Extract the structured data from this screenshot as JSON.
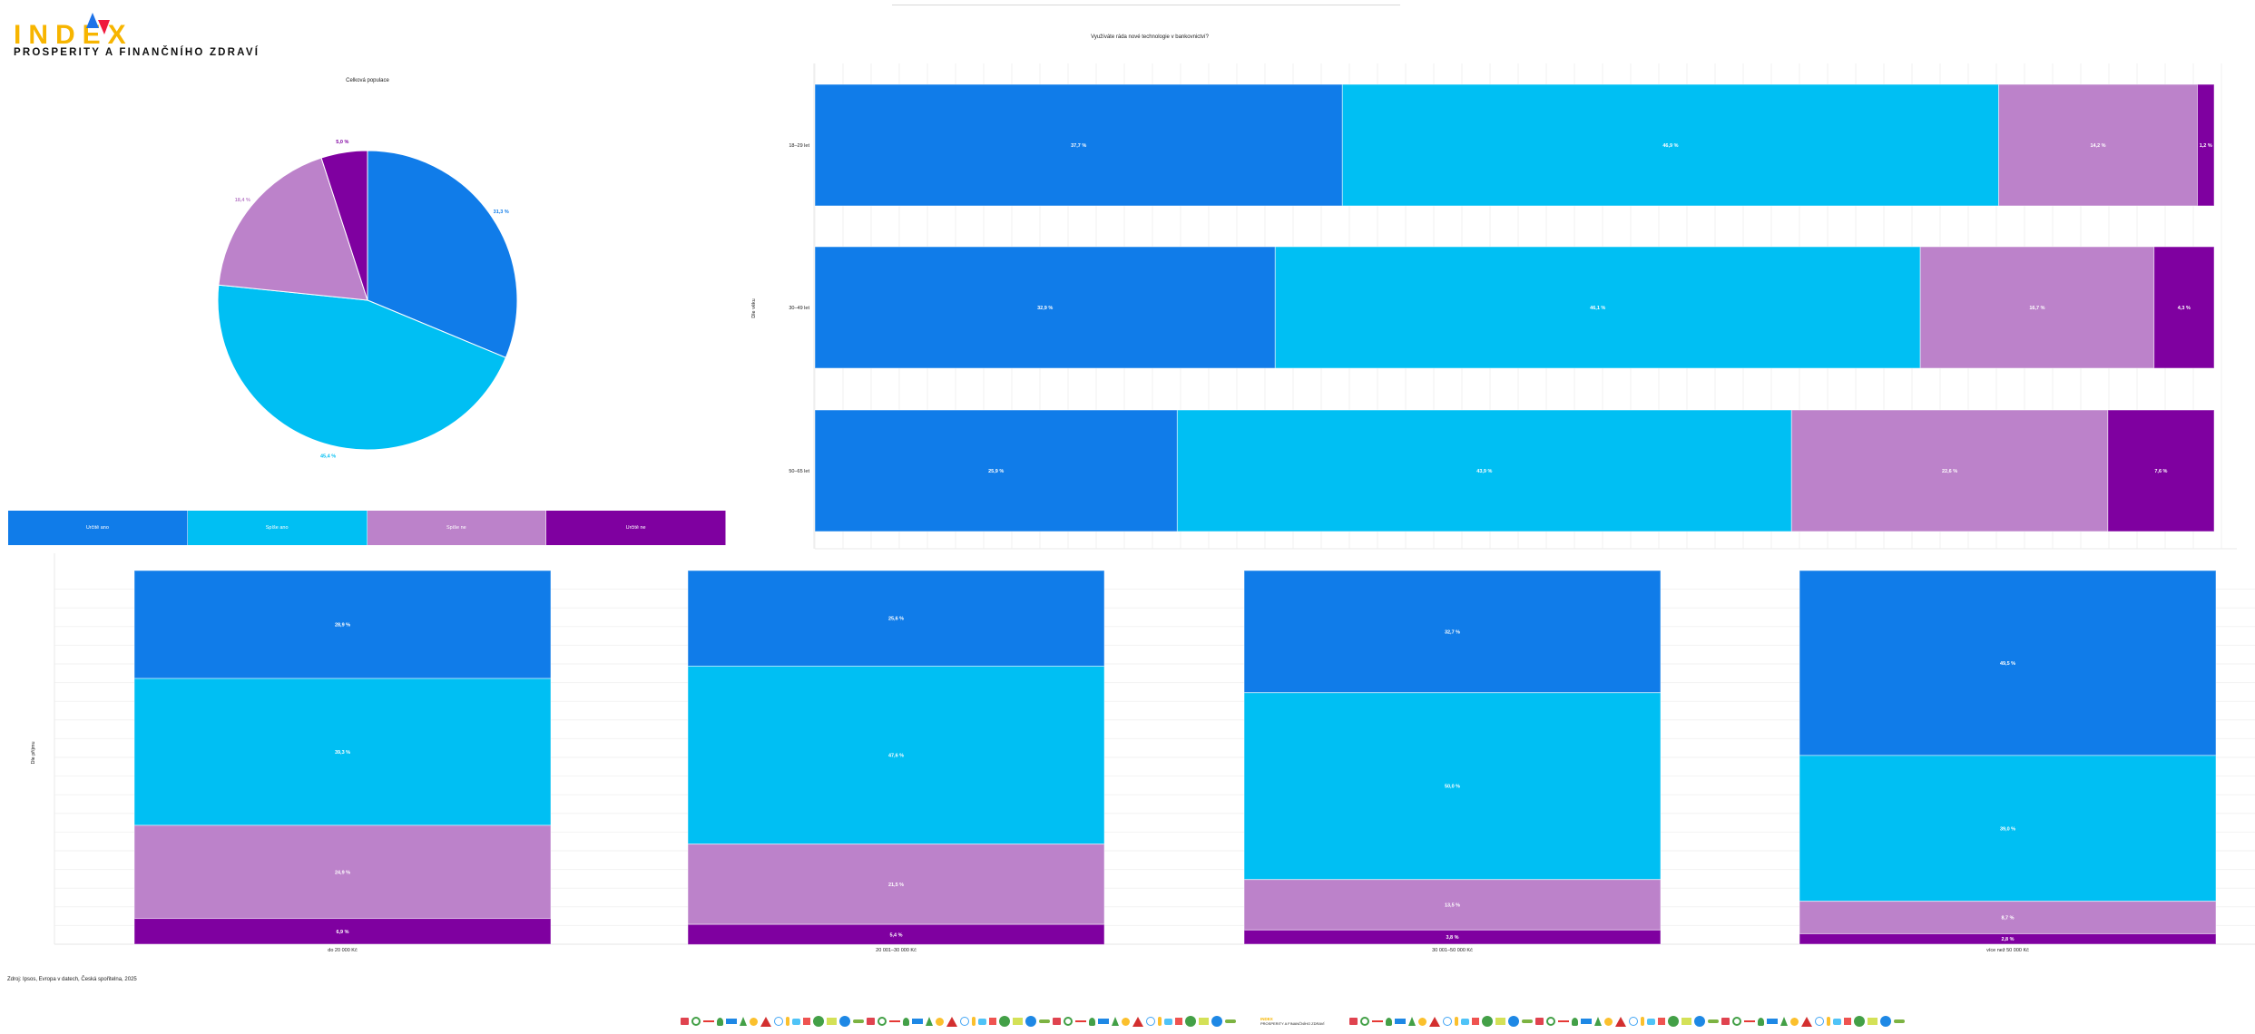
{
  "logo": {
    "word": "INDEX",
    "subtitle": "PROSPERITY A FINANČNÍHO ZDRAVÍ"
  },
  "colors": {
    "urcite_ano": "#107CE9",
    "spise_ano": "#00BFF3",
    "spise_ne": "#BC82CA",
    "urcite_ne": "#7F00A0",
    "logo_yellow": "#F7B500",
    "logo_blue": "#1E73E8",
    "logo_red": "#F0193C"
  },
  "legend": [
    "Určitě ano",
    "Spíše ano",
    "Spíše ne",
    "Určitě ne"
  ],
  "source": "Zdroj: Ipsos, Evropa v datech, Česká spořitelna, 2025",
  "footer": {
    "strip_icons": [
      "bench-icon",
      "ring-icon",
      "rail-icon",
      "tree-icon",
      "flag-icon",
      "pine-icon",
      "sun-icon",
      "mountain-icon",
      "ferris-wheel-icon",
      "bottle-icon",
      "fountain-icon",
      "box-icon",
      "bush-icon",
      "factory-icon",
      "globe-icon",
      "car-icon"
    ]
  },
  "chart_data": [
    {
      "type": "pie",
      "title": "Celková populace",
      "categories": [
        "Určitě ano",
        "Spíše ano",
        "Spíše ne",
        "Určitě ne"
      ],
      "values": [
        31.3,
        45.4,
        18.4,
        5.0
      ],
      "labels": [
        "31,3 %",
        "45,4 %",
        "18,4 %",
        "5,0 %"
      ],
      "legend": "bottom"
    },
    {
      "type": "bar",
      "orientation": "horizontal",
      "stacked": true,
      "title": "Využíváte ráda nové technologie v bankovnictví?",
      "ylabel": "Dle věku",
      "categories": [
        "18–29 let",
        "30–49 let",
        "50–65 let"
      ],
      "series": [
        {
          "name": "Určitě ano",
          "values": [
            37.7,
            32.9,
            25.9
          ],
          "labels": [
            "37,7 %",
            "32,9 %",
            "25,9 %"
          ]
        },
        {
          "name": "Spíše ano",
          "values": [
            46.9,
            46.1,
            43.9
          ],
          "labels": [
            "46,9 %",
            "46,1 %",
            "43,9 %"
          ]
        },
        {
          "name": "Spíše ne",
          "values": [
            14.2,
            16.7,
            22.6
          ],
          "labels": [
            "14,2 %",
            "16,7 %",
            "22,6 %"
          ]
        },
        {
          "name": "Určitě ne",
          "values": [
            1.2,
            4.3,
            7.6
          ],
          "labels": [
            "1,2 %",
            "4,3 %",
            "7,6 %"
          ]
        }
      ],
      "xlim": [
        0,
        100
      ],
      "grid": true
    },
    {
      "type": "bar",
      "orientation": "vertical",
      "stacked": true,
      "ylabel": "Dle příjmu",
      "categories": [
        "do 20 000 Kč",
        "20 001–30 000 Kč",
        "30 001–50 000 Kč",
        "více než 50 000 Kč"
      ],
      "series": [
        {
          "name": "Určitě ano",
          "values": [
            28.9,
            25.6,
            32.7,
            49.5
          ],
          "labels": [
            "28,9 %",
            "25,6 %",
            "32,7 %",
            "49,5 %"
          ]
        },
        {
          "name": "Spíše ano",
          "values": [
            39.3,
            47.6,
            50.0,
            39.0
          ],
          "labels": [
            "39,3 %",
            "47,6 %",
            "50,0 %",
            "39,0 %"
          ]
        },
        {
          "name": "Spíše ne",
          "values": [
            24.9,
            21.5,
            13.5,
            8.7
          ],
          "labels": [
            "24,9 %",
            "21,5 %",
            "13,5 %",
            "8,7 %"
          ]
        },
        {
          "name": "Určitě ne",
          "values": [
            6.9,
            5.4,
            3.8,
            2.8
          ],
          "labels": [
            "6,9 %",
            "5,4 %",
            "3,8 %",
            "2,8 %"
          ]
        }
      ],
      "ylim": [
        0,
        100
      ],
      "grid": true
    }
  ]
}
